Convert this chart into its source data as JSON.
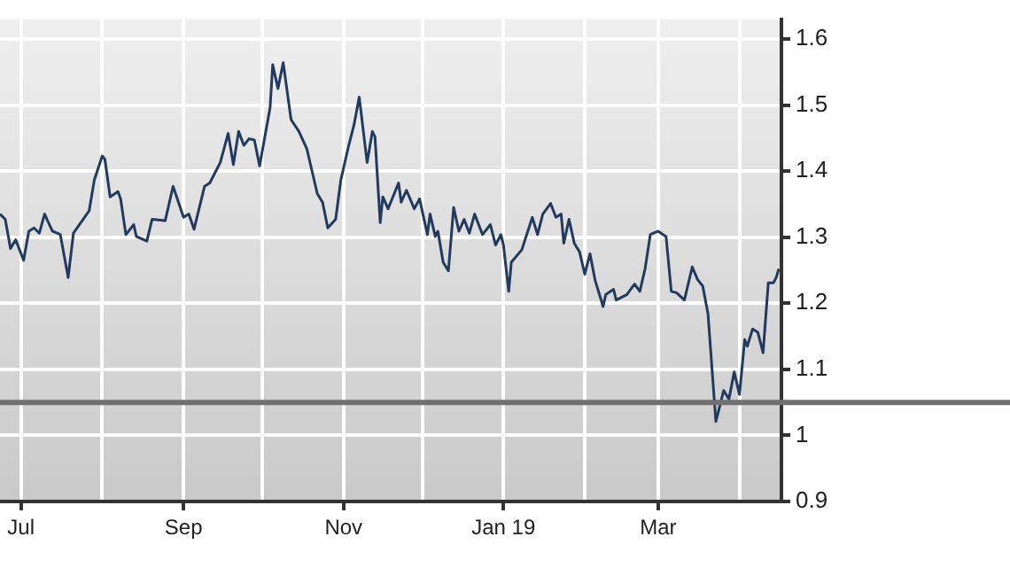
{
  "chart_data": {
    "type": "line",
    "grid": true,
    "marker": "none",
    "line_style": "solid",
    "legend": false,
    "xlim": [
      "2018-06-23",
      "2019-04-17"
    ],
    "xticks": [
      {
        "value": "2018-07-01",
        "label": "Jul"
      },
      {
        "value": "2018-08-01",
        "label": null
      },
      {
        "value": "2018-09-01",
        "label": "Sep"
      },
      {
        "value": "2018-10-01",
        "label": null
      },
      {
        "value": "2018-11-01",
        "label": "Nov"
      },
      {
        "value": "2018-12-01",
        "label": null
      },
      {
        "value": "2019-01-01",
        "label": "Jan 19"
      },
      {
        "value": "2019-02-01",
        "label": null
      },
      {
        "value": "2019-03-01",
        "label": "Mar"
      },
      {
        "value": "2019-04-01",
        "label": null
      }
    ],
    "ylim": [
      0.9,
      1.63
    ],
    "yticks": [
      0.9,
      1,
      1.1,
      1.2,
      1.3,
      1.4,
      1.5,
      1.6
    ],
    "ref_lines": [
      {
        "axis": "y",
        "value": 1.05,
        "color": "#707070"
      }
    ],
    "series": [
      {
        "color": "#223a5e",
        "x": [
          "2018-06-23",
          "2018-06-25",
          "2018-06-27",
          "2018-06-29",
          "2018-07-02",
          "2018-07-04",
          "2018-07-06",
          "2018-07-08",
          "2018-07-10",
          "2018-07-13",
          "2018-07-16",
          "2018-07-19",
          "2018-07-21",
          "2018-07-27",
          "2018-07-29",
          "2018-08-01",
          "2018-08-02",
          "2018-08-04",
          "2018-08-07",
          "2018-08-08",
          "2018-08-10",
          "2018-08-13",
          "2018-08-14",
          "2018-08-18",
          "2018-08-20",
          "2018-08-25",
          "2018-08-28",
          "2018-09-01",
          "2018-09-03",
          "2018-09-05",
          "2018-09-09",
          "2018-09-11",
          "2018-09-15",
          "2018-09-18",
          "2018-09-20",
          "2018-09-22",
          "2018-09-24",
          "2018-09-26",
          "2018-09-28",
          "2018-09-30",
          "2018-10-04",
          "2018-10-05",
          "2018-10-07",
          "2018-10-09",
          "2018-10-12",
          "2018-10-15",
          "2018-10-18",
          "2018-10-22",
          "2018-10-24",
          "2018-10-26",
          "2018-10-29",
          "2018-10-31",
          "2018-11-03",
          "2018-11-05",
          "2018-11-07",
          "2018-11-10",
          "2018-11-12",
          "2018-11-13",
          "2018-11-15",
          "2018-11-16",
          "2018-11-18",
          "2018-11-22",
          "2018-11-23",
          "2018-11-25",
          "2018-11-28",
          "2018-11-30",
          "2018-12-03",
          "2018-12-04",
          "2018-12-06",
          "2018-12-07",
          "2018-12-09",
          "2018-12-11",
          "2018-12-13",
          "2018-12-15",
          "2018-12-17",
          "2018-12-19",
          "2018-12-21",
          "2018-12-24",
          "2018-12-27",
          "2018-12-29",
          "2018-12-31",
          "2019-01-01",
          "2019-01-03",
          "2019-01-04",
          "2019-01-08",
          "2019-01-12",
          "2019-01-14",
          "2019-01-16",
          "2019-01-19",
          "2019-01-21",
          "2019-01-23",
          "2019-01-24",
          "2019-01-26",
          "2019-01-28",
          "2019-01-30",
          "2019-02-01",
          "2019-02-03",
          "2019-02-05",
          "2019-02-08",
          "2019-02-09",
          "2019-02-12",
          "2019-02-13",
          "2019-02-17",
          "2019-02-20",
          "2019-02-22",
          "2019-02-24",
          "2019-02-26",
          "2019-03-01",
          "2019-03-04",
          "2019-03-06",
          "2019-03-08",
          "2019-03-11",
          "2019-03-14",
          "2019-03-16",
          "2019-03-18",
          "2019-03-20",
          "2019-03-23",
          "2019-03-26",
          "2019-03-28",
          "2019-03-30",
          "2019-04-01",
          "2019-04-03",
          "2019-04-04",
          "2019-04-06",
          "2019-04-08",
          "2019-04-10",
          "2019-04-12",
          "2019-04-14",
          "2019-04-15",
          "2019-04-16"
        ],
        "values": [
          1.335,
          1.327,
          1.283,
          1.296,
          1.265,
          1.309,
          1.314,
          1.306,
          1.335,
          1.309,
          1.304,
          1.239,
          1.306,
          1.34,
          1.387,
          1.423,
          1.418,
          1.361,
          1.369,
          1.358,
          1.304,
          1.319,
          1.301,
          1.294,
          1.327,
          1.325,
          1.377,
          1.33,
          1.335,
          1.312,
          1.377,
          1.382,
          1.413,
          1.457,
          1.41,
          1.46,
          1.439,
          1.449,
          1.447,
          1.408,
          1.496,
          1.561,
          1.525,
          1.564,
          1.478,
          1.46,
          1.434,
          1.366,
          1.353,
          1.314,
          1.327,
          1.387,
          1.439,
          1.47,
          1.512,
          1.413,
          1.46,
          1.452,
          1.322,
          1.361,
          1.343,
          1.382,
          1.353,
          1.371,
          1.343,
          1.358,
          1.304,
          1.335,
          1.301,
          1.309,
          1.262,
          1.249,
          1.345,
          1.309,
          1.327,
          1.306,
          1.335,
          1.304,
          1.319,
          1.288,
          1.304,
          1.288,
          1.218,
          1.262,
          1.281,
          1.33,
          1.304,
          1.335,
          1.351,
          1.33,
          1.335,
          1.291,
          1.327,
          1.291,
          1.278,
          1.244,
          1.275,
          1.234,
          1.195,
          1.213,
          1.221,
          1.205,
          1.213,
          1.229,
          1.218,
          1.252,
          1.304,
          1.309,
          1.301,
          1.218,
          1.216,
          1.205,
          1.255,
          1.236,
          1.226,
          1.184,
          1.021,
          1.068,
          1.055,
          1.096,
          1.062,
          1.145,
          1.135,
          1.161,
          1.156,
          1.125,
          1.231,
          1.231,
          1.239,
          1.252
        ]
      }
    ]
  }
}
